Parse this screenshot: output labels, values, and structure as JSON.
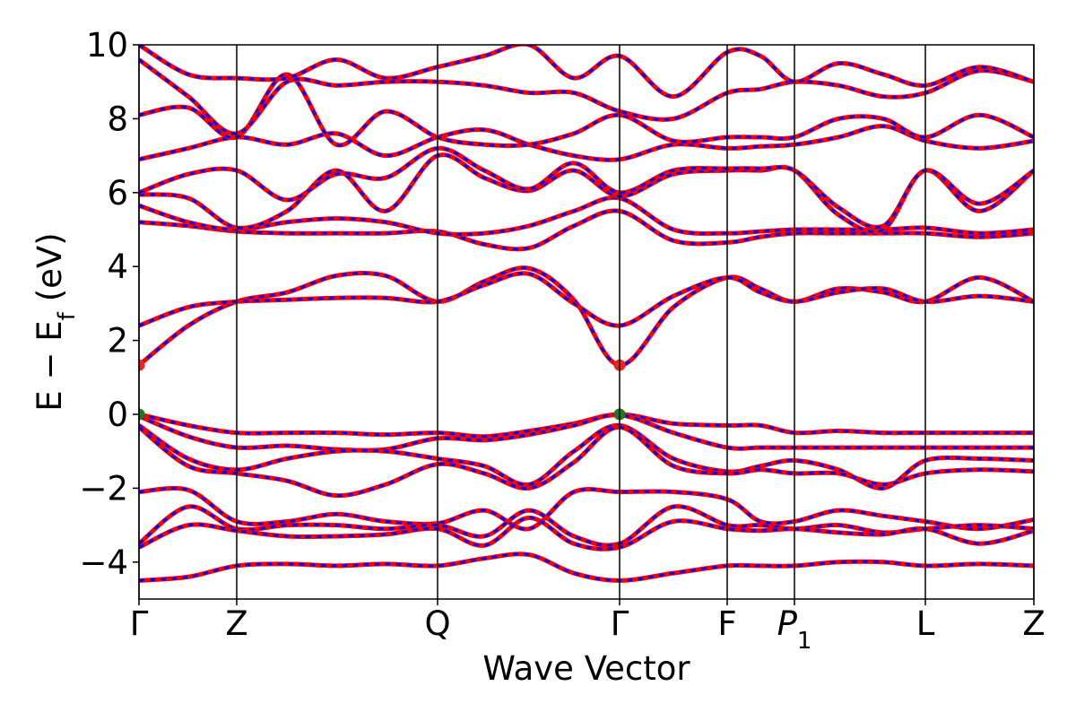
{
  "chart_data": {
    "type": "band-structure",
    "xlabel": "Wave Vector",
    "ylabel": {
      "text": "E − E",
      "sub": "f",
      "unit": "(eV)"
    },
    "xlim": [
      0,
      9.98
    ],
    "xticks": [
      {
        "value": 0,
        "label": "Γ"
      },
      {
        "value": 1.09,
        "label": "Z"
      },
      {
        "value": 3.33,
        "label": "Q"
      },
      {
        "value": 5.36,
        "label": "Γ"
      },
      {
        "value": 6.56,
        "label": "F"
      },
      {
        "value": 7.31,
        "label": "P",
        "sub": "1"
      },
      {
        "value": 8.77,
        "label": "L"
      },
      {
        "value": 9.98,
        "label": "Z"
      }
    ],
    "ylim": [
      -5,
      10
    ],
    "yticks": [
      {
        "value": -4,
        "label": "−4"
      },
      {
        "value": -2,
        "label": "−2"
      },
      0,
      2,
      4,
      6,
      8,
      10
    ],
    "band_color": "#ff0000",
    "overlay_color": "#0000ff",
    "x": [
      0,
      0.55,
      1.09,
      1.65,
      2.2,
      2.75,
      3.33,
      3.85,
      4.35,
      4.85,
      5.36,
      5.96,
      6.56,
      6.93,
      7.31,
      7.8,
      8.3,
      8.77,
      9.37,
      9.98
    ],
    "bands": [
      [
        0,
        -0.3,
        -0.5,
        -0.5,
        -0.5,
        -0.55,
        -0.5,
        -0.6,
        -0.45,
        -0.25,
        0,
        -0.25,
        -0.3,
        -0.3,
        -0.5,
        -0.45,
        -0.5,
        -0.5,
        -0.5,
        -0.5
      ],
      [
        -0.05,
        -0.6,
        -0.9,
        -0.85,
        -0.95,
        -0.95,
        -0.65,
        -0.7,
        -0.55,
        -0.3,
        -0.02,
        -0.5,
        -0.9,
        -0.9,
        -0.9,
        -0.9,
        -0.9,
        -0.9,
        -0.9,
        -0.9
      ],
      [
        -0.3,
        -1.2,
        -1.5,
        -1.2,
        -1.0,
        -1.0,
        -1.2,
        -1.4,
        -1.9,
        -1.0,
        -0.3,
        -1.2,
        -1.55,
        -1.4,
        -1.25,
        -1.5,
        -2.0,
        -1.25,
        -1.2,
        -1.25
      ],
      [
        -0.35,
        -1.4,
        -1.6,
        -1.8,
        -2.2,
        -1.9,
        -1.35,
        -1.6,
        -2.0,
        -1.3,
        -0.35,
        -1.4,
        -1.6,
        -1.5,
        -1.6,
        -1.6,
        -1.9,
        -1.6,
        -1.5,
        -1.55
      ],
      [
        -2.1,
        -2.05,
        -2.9,
        -2.9,
        -2.7,
        -2.9,
        -2.95,
        -2.6,
        -3.1,
        -2.1,
        -2.1,
        -2.1,
        -2.3,
        -2.9,
        -2.9,
        -2.6,
        -2.75,
        -2.9,
        -3.1,
        -2.85
      ],
      [
        -3.5,
        -2.5,
        -3.1,
        -3.0,
        -3.0,
        -3.1,
        -3.0,
        -3.3,
        -2.6,
        -3.3,
        -3.5,
        -2.5,
        -3.0,
        -3.0,
        -3.1,
        -3.0,
        -3.2,
        -3.1,
        -3.0,
        -3.1
      ],
      [
        -3.6,
        -3.0,
        -3.15,
        -3.3,
        -3.3,
        -3.25,
        -3.1,
        -3.55,
        -2.8,
        -3.5,
        -3.6,
        -2.9,
        -3.1,
        -3.15,
        -3.1,
        -3.2,
        -3.25,
        -3.1,
        -3.5,
        -3.15
      ],
      [
        -4.5,
        -4.4,
        -4.1,
        -4.05,
        -4.1,
        -4.05,
        -4.1,
        -3.9,
        -3.8,
        -4.3,
        -4.5,
        -4.3,
        -4.1,
        -4.1,
        -4.1,
        -4.0,
        -4.0,
        -4.1,
        -4.05,
        -4.1
      ],
      [
        1.33,
        2.4,
        3.05,
        3.3,
        3.75,
        3.75,
        3.05,
        3.6,
        3.95,
        3.1,
        1.33,
        2.9,
        3.7,
        3.4,
        3.05,
        3.4,
        3.3,
        3.05,
        3.7,
        3.05
      ],
      [
        2.4,
        2.9,
        3.05,
        3.1,
        3.15,
        3.15,
        3.05,
        3.5,
        3.8,
        3.0,
        2.4,
        3.2,
        3.7,
        3.3,
        3.05,
        3.3,
        3.4,
        3.05,
        3.2,
        3.05
      ],
      [
        5.2,
        5.1,
        4.95,
        4.9,
        4.9,
        4.9,
        4.95,
        4.6,
        4.5,
        5.1,
        5.5,
        4.7,
        4.65,
        4.8,
        4.9,
        4.9,
        4.9,
        4.9,
        4.8,
        4.9
      ],
      [
        5.65,
        5.2,
        5.0,
        5.2,
        5.3,
        5.2,
        4.9,
        4.9,
        5.1,
        5.5,
        5.85,
        5.0,
        4.9,
        4.95,
        5.0,
        5.0,
        5.0,
        5.05,
        4.9,
        5.0
      ],
      [
        5.95,
        5.85,
        5.05,
        5.5,
        6.6,
        5.5,
        7.0,
        6.4,
        6.05,
        6.6,
        5.9,
        6.5,
        6.6,
        6.6,
        6.6,
        5.4,
        5.0,
        6.6,
        5.5,
        6.6
      ],
      [
        6.0,
        6.5,
        6.6,
        5.8,
        6.5,
        6.4,
        7.2,
        6.6,
        6.1,
        6.8,
        6.0,
        6.6,
        6.65,
        6.65,
        6.6,
        5.6,
        5.1,
        6.6,
        5.7,
        6.6
      ],
      [
        6.9,
        7.2,
        7.5,
        7.3,
        7.6,
        7.0,
        7.5,
        7.7,
        7.3,
        7.0,
        6.9,
        7.3,
        7.2,
        7.25,
        7.3,
        7.5,
        7.8,
        7.4,
        7.2,
        7.4
      ],
      [
        8.1,
        8.3,
        7.5,
        9.2,
        7.3,
        8.2,
        7.5,
        7.3,
        7.3,
        7.6,
        8.1,
        7.4,
        7.5,
        7.5,
        7.5,
        8.0,
        8.0,
        7.5,
        8.1,
        7.5
      ],
      [
        9.6,
        8.6,
        7.6,
        9.0,
        8.9,
        9.0,
        9.0,
        8.9,
        8.7,
        8.7,
        8.2,
        8.0,
        8.7,
        8.8,
        9.0,
        8.9,
        8.6,
        8.7,
        9.3,
        9.0
      ],
      [
        10.0,
        9.2,
        9.1,
        9.1,
        9.6,
        9.1,
        9.4,
        9.7,
        10.0,
        9.1,
        9.7,
        8.6,
        9.8,
        9.7,
        9.0,
        9.5,
        9.2,
        8.9,
        9.4,
        9.0
      ]
    ],
    "points": [
      {
        "x": 0,
        "y": 1.33,
        "color": "#e8262a"
      },
      {
        "x": 5.36,
        "y": 1.33,
        "color": "#e8262a"
      },
      {
        "x": 0,
        "y": 0,
        "color": "#1f7a1f"
      },
      {
        "x": 5.36,
        "y": 0,
        "color": "#1f7a1f"
      }
    ]
  }
}
